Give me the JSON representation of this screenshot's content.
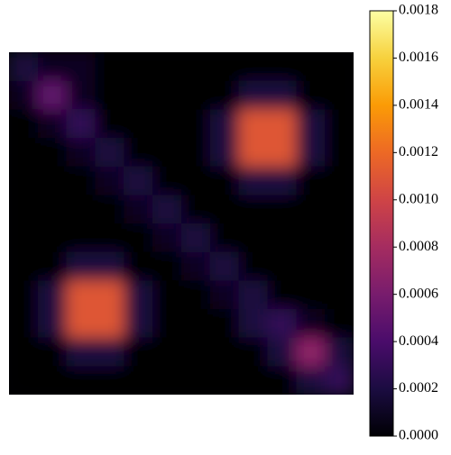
{
  "chart_data": {
    "type": "heatmap",
    "colormap": "inferno",
    "values": [
      [
        0.0002,
        0.0001,
        0.0001,
        0,
        0,
        0,
        0,
        0,
        0,
        0,
        0,
        0
      ],
      [
        0.0001,
        0.0005,
        0.0001,
        0,
        0,
        0,
        0,
        0,
        0.0002,
        0.0002,
        0,
        0
      ],
      [
        0,
        0.0001,
        0.0003,
        0,
        0,
        0,
        0,
        0.0002,
        0.0011,
        0.0011,
        0.0002,
        0
      ],
      [
        0,
        0,
        0.0001,
        0.0002,
        0,
        0,
        0,
        0.0002,
        0.0011,
        0.0011,
        0.0002,
        0
      ],
      [
        0,
        0,
        0,
        0.0001,
        0.0002,
        0,
        0,
        0,
        0.0002,
        0.0002,
        0,
        0
      ],
      [
        0,
        0,
        0,
        0,
        0.0001,
        0.0002,
        0,
        0,
        0,
        0,
        0,
        0
      ],
      [
        0,
        0,
        0,
        0,
        0,
        0.0001,
        0.0002,
        0,
        0,
        0,
        0,
        0
      ],
      [
        0,
        0,
        0.0002,
        0.0002,
        0,
        0,
        0.0001,
        0.0002,
        0,
        0,
        0,
        0
      ],
      [
        0,
        0.0002,
        0.0011,
        0.0011,
        0.0002,
        0,
        0,
        0.0001,
        0.0002,
        0,
        0,
        0
      ],
      [
        0,
        0.0002,
        0.0011,
        0.0011,
        0.0002,
        0,
        0,
        0,
        0.0002,
        0.0003,
        0.0001,
        0
      ],
      [
        0,
        0,
        0.0002,
        0.0002,
        0,
        0,
        0,
        0,
        0,
        0.0002,
        0.0007,
        0.0002
      ],
      [
        0,
        0,
        0,
        0,
        0,
        0,
        0,
        0,
        0,
        0,
        0.0002,
        0.0003
      ]
    ],
    "clim": [
      0,
      0.0018
    ],
    "cticks": [
      {
        "value": 0,
        "label": "0.0000"
      },
      {
        "value": 0.0002,
        "label": "0.0002"
      },
      {
        "value": 0.0004,
        "label": "0.0004"
      },
      {
        "value": 0.0006,
        "label": "0.0006"
      },
      {
        "value": 0.0008,
        "label": "0.0008"
      },
      {
        "value": 0.001,
        "label": "0.0010"
      },
      {
        "value": 0.0012,
        "label": "0.0012"
      },
      {
        "value": 0.0014,
        "label": "0.0014"
      },
      {
        "value": 0.0016,
        "label": "0.0016"
      },
      {
        "value": 0.0018,
        "label": "0.0018"
      }
    ]
  }
}
